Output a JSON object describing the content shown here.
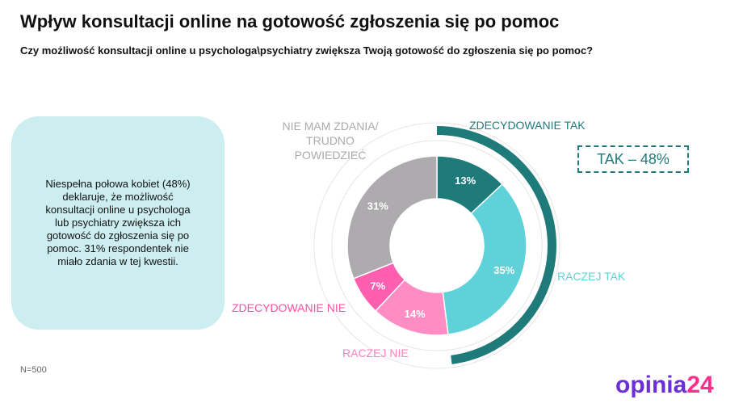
{
  "title": "Wpływ konsultacji online na gotowość zgłoszenia się po pomoc",
  "subtitle": "Czy możliwość konsultacji online u psychologa\\psychiatry zwiększa Twoją gotowość do zgłoszenia się po pomoc?",
  "note": "Niespełna połowa kobiet (48%) deklaruje, że możliwość konsultacji online u psychologa lub psychiatry zwiększa ich gotowość do zgłoszenia się po pomoc. 31% respondentek nie miało zdania w tej kwestii.",
  "sample": "N=500",
  "logo": {
    "main": "opinia",
    "accent": "24"
  },
  "chart_data": {
    "type": "pie",
    "variant": "donut",
    "categories": [
      "ZDECYDOWANIE TAK",
      "RACZEJ TAK",
      "RACZEJ NIE",
      "ZDECYDOWANIE NIE",
      "NIE MAM ZDANIA/ TRUDNO POWIEDZIEĆ"
    ],
    "values": [
      13,
      35,
      14,
      7,
      31
    ],
    "labels": [
      "13%",
      "35%",
      "14%",
      "7%",
      "31%"
    ],
    "colors": [
      "#1f7a7a",
      "#5fd1d8",
      "#ff8cc2",
      "#ff5fae",
      "#adabad"
    ],
    "label_colors": [
      "#1f7a7a",
      "#5fd1d8",
      "#ff7fbf",
      "#ff4fa3",
      "#aaaaaa"
    ],
    "summary": {
      "label": "TAK – 48%",
      "value": 48,
      "color": "#1f7a7a"
    }
  }
}
